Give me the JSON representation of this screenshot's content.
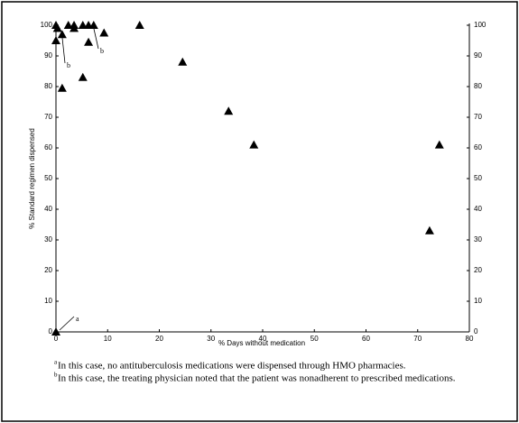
{
  "chart_data": {
    "type": "scatter",
    "x_label": "% Days without medication",
    "y_label": "% Standard regimen dispensed",
    "xlim": [
      0,
      80
    ],
    "xticks": [
      0,
      10,
      20,
      30,
      40,
      50,
      60,
      70,
      80
    ],
    "ylim": [
      0,
      100
    ],
    "yticks": [
      0,
      10,
      20,
      30,
      40,
      50,
      60,
      70,
      80,
      90,
      100
    ],
    "y2lim": [
      0,
      100
    ],
    "y2ticks": [
      0,
      10,
      20,
      30,
      40,
      50,
      60,
      70,
      80,
      90,
      100
    ],
    "color": "#000000",
    "x": [
      0,
      0,
      0.3,
      0,
      1.2,
      1.2,
      2.4,
      3.5,
      3.5,
      5.2,
      5.2,
      6.3,
      6.3,
      7.3,
      9.3,
      16.2,
      24.5,
      33.4,
      38.3,
      72.3,
      74.2
    ],
    "values": [
      0,
      100,
      99,
      95,
      97,
      79.5,
      100,
      100,
      99,
      100,
      83,
      100,
      94.5,
      100,
      97.5,
      100,
      88,
      72,
      61,
      33,
      61
    ],
    "annotations": [
      "a",
      "b",
      "b"
    ],
    "notes": [
      {
        "mark": "a",
        "text": "In this case, no antituberculosis medications were dispensed through HMO pharmacies."
      },
      {
        "mark": "b",
        "text": "In this case, the treating physician noted that the patient was nonadherent to prescribed medications."
      }
    ]
  }
}
